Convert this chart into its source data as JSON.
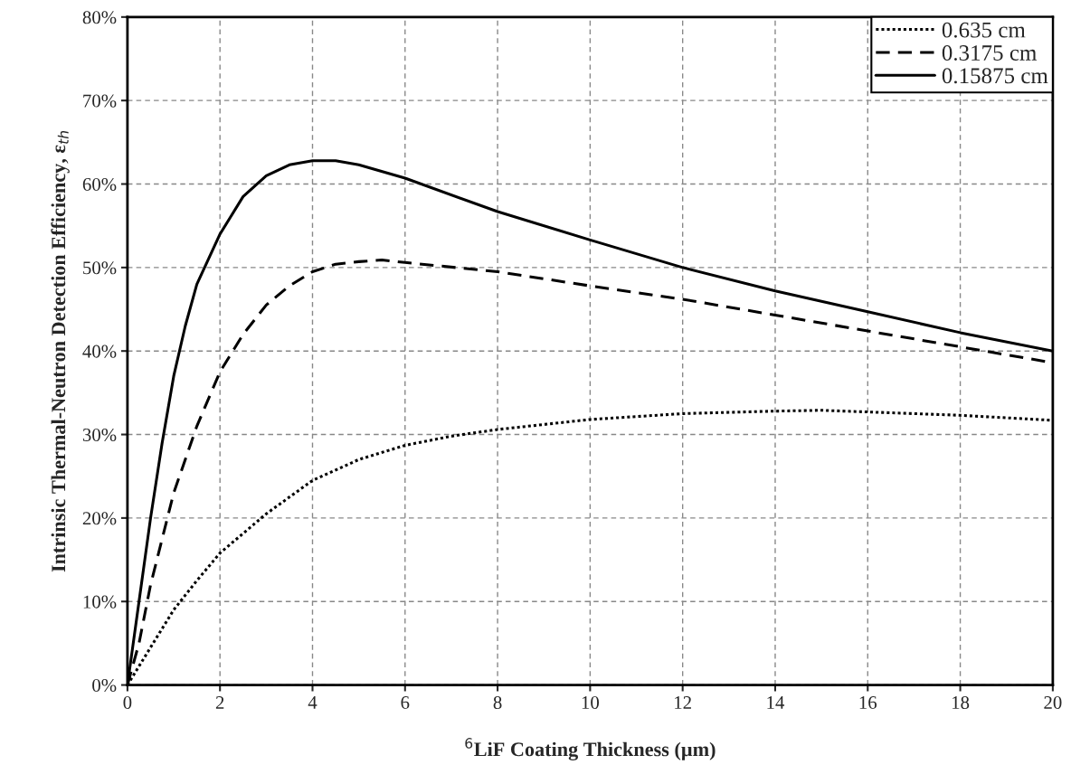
{
  "chart_data": {
    "type": "line",
    "xlabel": "$^{6}$LiF Coating Thickness (µm)",
    "ylabel": "Intrinsic Thermal-Neutron Detection Efficiency, ε$_{th}$",
    "xlim": [
      0,
      20
    ],
    "xticks": [
      0,
      2,
      4,
      6,
      8,
      10,
      12,
      14,
      16,
      18,
      20
    ],
    "ylim": [
      0,
      80
    ],
    "yticks": [
      {
        "value": 0,
        "label": "0%"
      },
      {
        "value": 10,
        "label": "10%"
      },
      {
        "value": 20,
        "label": "20%"
      },
      {
        "value": 30,
        "label": "30%"
      },
      {
        "value": 40,
        "label": "40%"
      },
      {
        "value": 50,
        "label": "50%"
      },
      {
        "value": 60,
        "label": "60%"
      },
      {
        "value": 70,
        "label": "70%"
      },
      {
        "value": 80,
        "label": "80%"
      }
    ],
    "grid": true,
    "legend": "top right",
    "marker": "none",
    "series": [
      {
        "name": "0.635 cm",
        "color": "#000000",
        "line_style": "dotted",
        "x": [
          0,
          0.5,
          1,
          1.5,
          2,
          3,
          4,
          5,
          6,
          7,
          8,
          10,
          12,
          14,
          15,
          16,
          18,
          20
        ],
        "values": [
          0,
          4.5,
          9,
          12.5,
          15.8,
          20.5,
          24.5,
          27,
          28.7,
          29.8,
          30.6,
          31.8,
          32.5,
          32.8,
          32.9,
          32.7,
          32.3,
          31.7
        ]
      },
      {
        "name": "0.3175 cm",
        "color": "#000000",
        "line_style": "dashed",
        "x": [
          0,
          0.25,
          0.5,
          1,
          1.5,
          2,
          2.5,
          3,
          3.5,
          4,
          4.5,
          5,
          5.5,
          6,
          8,
          10,
          12,
          14,
          16,
          18,
          20
        ],
        "values": [
          0,
          5,
          12,
          23,
          31,
          37.5,
          42,
          45.5,
          47.8,
          49.5,
          50.4,
          50.7,
          50.9,
          50.6,
          49.5,
          47.8,
          46.2,
          44.3,
          42.4,
          40.5,
          38.6
        ]
      },
      {
        "name": "0.15875 cm",
        "color": "#000000",
        "line_style": "solid",
        "x": [
          0,
          0.25,
          0.5,
          0.75,
          1,
          1.25,
          1.5,
          2,
          2.5,
          3,
          3.5,
          4,
          4.5,
          5,
          6,
          8,
          10,
          12,
          14,
          16,
          18,
          20
        ],
        "values": [
          0,
          10,
          20,
          29,
          37,
          43,
          48,
          54,
          58.5,
          61,
          62.3,
          62.8,
          62.8,
          62.3,
          60.7,
          56.7,
          53.3,
          50,
          47.2,
          44.7,
          42.2,
          40
        ]
      }
    ]
  }
}
